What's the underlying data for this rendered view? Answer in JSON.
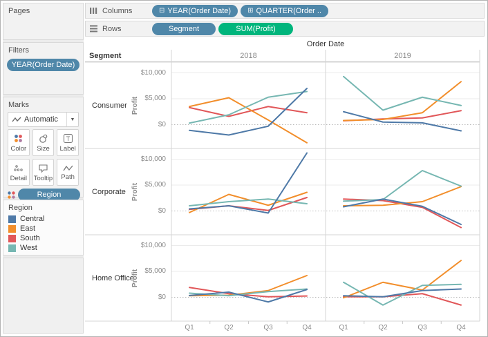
{
  "shelves": {
    "columns": {
      "label": "Columns",
      "pills": [
        {
          "text": "YEAR(Order Date)",
          "icon": "minus-box-icon",
          "glyph": "⊟"
        },
        {
          "text": "QUARTER(Order ..",
          "icon": "plus-box-icon",
          "glyph": "⊞"
        }
      ]
    },
    "rows": {
      "label": "Rows",
      "pills": [
        {
          "text": "Segment",
          "color": "blue"
        },
        {
          "text": "SUM(Profit)",
          "color": "green"
        }
      ]
    }
  },
  "sidebar": {
    "pages_label": "Pages",
    "filters_label": "Filters",
    "filter_pill": "YEAR(Order Date)",
    "marks_label": "Marks",
    "mark_type": "Automatic",
    "mark_caret": "▼",
    "mark_buttons": [
      "Color",
      "Size",
      "Label",
      "Detail",
      "Tooltip",
      "Path"
    ],
    "marks_pill": "Region",
    "legend": {
      "title": "Region",
      "items": [
        {
          "label": "Central",
          "color": "#4e79a7"
        },
        {
          "label": "East",
          "color": "#f28e2b"
        },
        {
          "label": "South",
          "color": "#e15759"
        },
        {
          "label": "West",
          "color": "#76b7b2"
        }
      ]
    }
  },
  "chart_data": {
    "type": "line",
    "title": "Order Date",
    "row_header": "Segment",
    "col_years": [
      "2018",
      "2019"
    ],
    "row_segments": [
      "Consumer",
      "Corporate",
      "Home Office"
    ],
    "x_categories": [
      "Q1",
      "Q2",
      "Q3",
      "Q4"
    ],
    "ylabel": "Profit",
    "yticks": [
      {
        "label": "$10,000",
        "value": 10000
      },
      {
        "label": "$5,000",
        "value": 5000
      },
      {
        "label": "$0",
        "value": 0
      }
    ],
    "ylim": [
      -4600,
      12100
    ],
    "legend_position": "left",
    "grid": true,
    "series_colors": {
      "Central": "#4e79a7",
      "East": "#f28e2b",
      "South": "#e15759",
      "West": "#76b7b2"
    },
    "draw_order": [
      "South",
      "East",
      "West",
      "Central"
    ],
    "panels": [
      {
        "segment": "Consumer",
        "year": "2018",
        "series": [
          {
            "name": "Central",
            "values": [
              -1100,
              -2000,
              -300,
              7000
            ]
          },
          {
            "name": "East",
            "values": [
              3500,
              5200,
              900,
              -3500
            ]
          },
          {
            "name": "South",
            "values": [
              3300,
              1600,
              3500,
              2300
            ]
          },
          {
            "name": "West",
            "values": [
              300,
              1900,
              5300,
              6400
            ]
          }
        ]
      },
      {
        "segment": "Consumer",
        "year": "2019",
        "series": [
          {
            "name": "Central",
            "values": [
              2500,
              500,
              350,
              -1200
            ]
          },
          {
            "name": "East",
            "values": [
              800,
              1000,
              2300,
              8300
            ]
          },
          {
            "name": "South",
            "values": [
              750,
              1100,
              1300,
              2700
            ]
          },
          {
            "name": "West",
            "values": [
              9300,
              2800,
              5300,
              3700
            ]
          }
        ]
      },
      {
        "segment": "Corporate",
        "year": "2018",
        "series": [
          {
            "name": "Central",
            "values": [
              400,
              1000,
              -400,
              11200
            ]
          },
          {
            "name": "East",
            "values": [
              -300,
              3200,
              1100,
              3600
            ]
          },
          {
            "name": "South",
            "values": [
              300,
              1000,
              100,
              2600
            ]
          },
          {
            "name": "West",
            "values": [
              1000,
              1800,
              2300,
              1400
            ]
          }
        ]
      },
      {
        "segment": "Corporate",
        "year": "2019",
        "series": [
          {
            "name": "Central",
            "values": [
              800,
              2300,
              900,
              -2600
            ]
          },
          {
            "name": "East",
            "values": [
              1000,
              1100,
              1800,
              4700
            ]
          },
          {
            "name": "South",
            "values": [
              2300,
              2000,
              700,
              -3200
            ]
          },
          {
            "name": "West",
            "values": [
              1900,
              2200,
              7800,
              4800
            ]
          }
        ]
      },
      {
        "segment": "Home Office",
        "year": "2018",
        "series": [
          {
            "name": "Central",
            "values": [
              350,
              1000,
              -900,
              1500
            ]
          },
          {
            "name": "East",
            "values": [
              300,
              400,
              1300,
              4200
            ]
          },
          {
            "name": "South",
            "values": [
              1900,
              700,
              100,
              250
            ]
          },
          {
            "name": "West",
            "values": [
              800,
              300,
              1100,
              1600
            ]
          }
        ]
      },
      {
        "segment": "Home Office",
        "year": "2019",
        "series": [
          {
            "name": "Central",
            "values": [
              300,
              100,
              1300,
              1600
            ]
          },
          {
            "name": "East",
            "values": [
              -100,
              2900,
              1400,
              7100
            ]
          },
          {
            "name": "South",
            "values": [
              100,
              100,
              700,
              -1500
            ]
          },
          {
            "name": "West",
            "values": [
              2900,
              -1500,
              2300,
              2500
            ]
          }
        ]
      }
    ]
  }
}
